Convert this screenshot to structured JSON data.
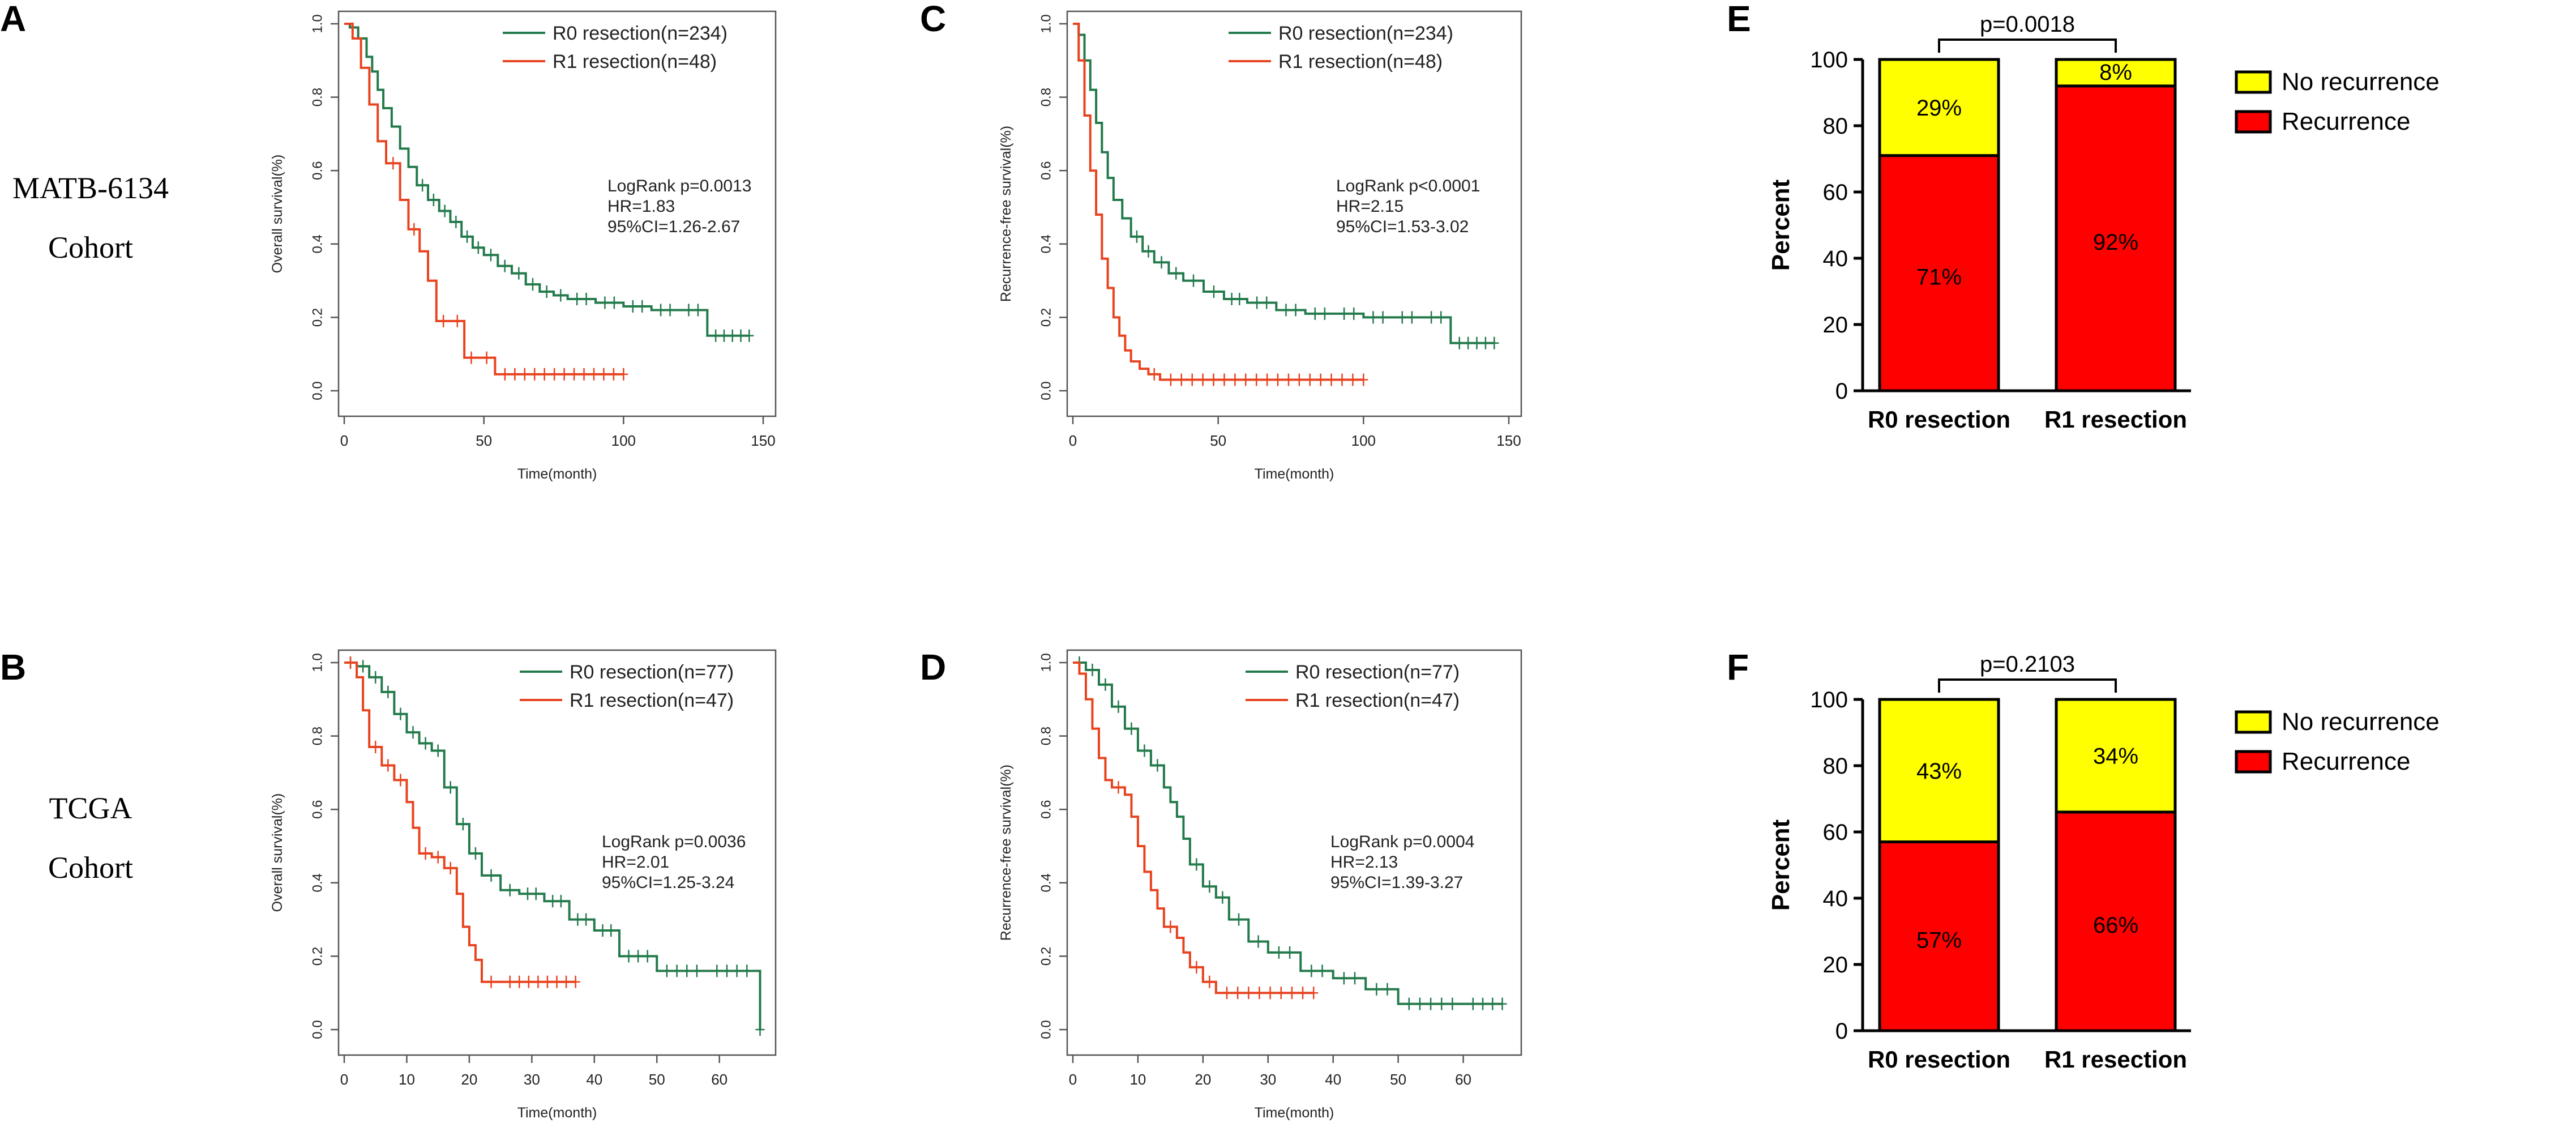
{
  "colors": {
    "r0": "#237a4b",
    "r1": "#e8431f",
    "recurrence": "#ff0000",
    "no_recurrence": "#ffff00"
  },
  "cohorts": [
    {
      "name_line1": "MATB-6134",
      "name_line2": "Cohort"
    },
    {
      "name_line1": "TCGA",
      "name_line2": "Cohort"
    }
  ],
  "chart_data": [
    {
      "panel": "A",
      "type": "line",
      "xlabel": "Time(month)",
      "ylabel": "Overall survival(%)",
      "xlim": [
        0,
        150
      ],
      "ylim": [
        0,
        1.0
      ],
      "xticks": [
        "0",
        "50",
        "100",
        "150"
      ],
      "yticks": [
        "0.0",
        "0.2",
        "0.4",
        "0.6",
        "0.8",
        "1.0"
      ],
      "legend": [
        "R0 resection(n=234)",
        "R1 resection(n=48)"
      ],
      "stats": [
        "LogRank p=0.0013",
        "HR=1.83",
        "95%CI=1.26-2.67"
      ],
      "series": [
        {
          "name": "R0 resection(n=234)",
          "x": [
            0,
            2,
            5,
            8,
            10,
            12,
            14,
            17,
            20,
            23,
            26,
            30,
            34,
            38,
            42,
            46,
            50,
            55,
            60,
            65,
            70,
            75,
            80,
            90,
            100,
            110,
            120,
            130,
            145
          ],
          "y": [
            1.0,
            0.99,
            0.96,
            0.91,
            0.87,
            0.82,
            0.77,
            0.72,
            0.66,
            0.61,
            0.56,
            0.52,
            0.49,
            0.46,
            0.42,
            0.39,
            0.37,
            0.34,
            0.32,
            0.29,
            0.27,
            0.26,
            0.25,
            0.24,
            0.23,
            0.22,
            0.22,
            0.15,
            0.15
          ]
        },
        {
          "name": "R1 resection(n=48)",
          "x": [
            0,
            3,
            6,
            9,
            12,
            15,
            20,
            23,
            27,
            30,
            33,
            38,
            43,
            48,
            54,
            100
          ],
          "y": [
            1.0,
            0.96,
            0.88,
            0.78,
            0.68,
            0.62,
            0.52,
            0.44,
            0.38,
            0.3,
            0.19,
            0.19,
            0.09,
            0.09,
            0.045,
            0.045
          ]
        }
      ]
    },
    {
      "panel": "C",
      "type": "line",
      "xlabel": "Time(month)",
      "ylabel": "Recurrence-free survival(%)",
      "xlim": [
        0,
        150
      ],
      "ylim": [
        0,
        1.0
      ],
      "xticks": [
        "0",
        "50",
        "100",
        "150"
      ],
      "yticks": [
        "0.0",
        "0.2",
        "0.4",
        "0.6",
        "0.8",
        "1.0"
      ],
      "legend": [
        "R0 resection(n=234)",
        "R1 resection(n=48)"
      ],
      "stats": [
        "LogRank p<0.0001",
        "HR=2.15",
        "95%CI=1.53-3.02"
      ],
      "series": [
        {
          "name": "R0 resection(n=234)",
          "x": [
            0,
            2,
            4,
            6,
            8,
            10,
            12,
            14,
            17,
            20,
            24,
            28,
            33,
            38,
            45,
            52,
            60,
            70,
            80,
            90,
            100,
            110,
            120,
            130,
            145
          ],
          "y": [
            1.0,
            0.97,
            0.9,
            0.82,
            0.73,
            0.65,
            0.58,
            0.52,
            0.47,
            0.42,
            0.38,
            0.35,
            0.32,
            0.3,
            0.27,
            0.25,
            0.24,
            0.22,
            0.21,
            0.21,
            0.2,
            0.2,
            0.2,
            0.13,
            0.13
          ]
        },
        {
          "name": "R1 resection(n=48)",
          "x": [
            0,
            2,
            4,
            6,
            8,
            10,
            12,
            14,
            16,
            18,
            20,
            23,
            26,
            30,
            100
          ],
          "y": [
            1.0,
            0.9,
            0.75,
            0.6,
            0.48,
            0.36,
            0.28,
            0.2,
            0.15,
            0.11,
            0.08,
            0.06,
            0.045,
            0.03,
            0.03
          ]
        }
      ]
    },
    {
      "panel": "E",
      "type": "bar",
      "categories": [
        "R0 resection",
        "R1 resection"
      ],
      "ylabel": "Percent",
      "ylim": [
        0,
        100
      ],
      "yticks": [
        "0",
        "20",
        "40",
        "60",
        "80",
        "100"
      ],
      "pvalue": "p=0.0018",
      "series": [
        {
          "name": "Recurrence",
          "values": [
            71,
            92
          ],
          "labels": [
            "71%",
            "92%"
          ]
        },
        {
          "name": "No recurrence",
          "values": [
            29,
            8
          ],
          "labels": [
            "29%",
            "8%"
          ]
        }
      ],
      "legend": [
        "No recurrence",
        "Recurrence"
      ]
    },
    {
      "panel": "B",
      "type": "line",
      "xlabel": "Time(month)",
      "ylabel": "Overall survival(%)",
      "xlim": [
        0,
        67
      ],
      "ylim": [
        0,
        1.0
      ],
      "xticks": [
        "0",
        "10",
        "20",
        "30",
        "40",
        "50",
        "60"
      ],
      "yticks": [
        "0.0",
        "0.2",
        "0.4",
        "0.6",
        "0.8",
        "1.0"
      ],
      "legend": [
        "R0 resection(n=77)",
        "R1 resection(n=47)"
      ],
      "stats": [
        "LogRank p=0.0036",
        "HR=2.01",
        "95%CI=1.25-3.24"
      ],
      "series": [
        {
          "name": "R0 resection(n=77)",
          "x": [
            0,
            2,
            4,
            6,
            8,
            10,
            12,
            14,
            16,
            18,
            20,
            22,
            25,
            28,
            32,
            36,
            40,
            44,
            50,
            58,
            66,
            66.5
          ],
          "y": [
            1.0,
            0.99,
            0.96,
            0.92,
            0.86,
            0.81,
            0.78,
            0.76,
            0.66,
            0.56,
            0.48,
            0.42,
            0.38,
            0.37,
            0.35,
            0.3,
            0.27,
            0.2,
            0.16,
            0.16,
            0.16,
            0.0
          ]
        },
        {
          "name": "R1 resection(n=47)",
          "x": [
            0,
            2,
            3,
            4,
            6,
            8,
            10,
            11,
            12,
            14,
            16,
            18,
            19,
            20,
            21,
            22,
            25,
            37
          ],
          "y": [
            1.0,
            0.96,
            0.87,
            0.77,
            0.72,
            0.68,
            0.62,
            0.55,
            0.48,
            0.47,
            0.44,
            0.37,
            0.28,
            0.23,
            0.19,
            0.13,
            0.13,
            0.13
          ]
        }
      ]
    },
    {
      "panel": "D",
      "type": "line",
      "xlabel": "Time(month)",
      "ylabel": "Recurrence-free survival(%)",
      "xlim": [
        0,
        67
      ],
      "ylim": [
        0,
        1.0
      ],
      "xticks": [
        "0",
        "10",
        "20",
        "30",
        "40",
        "50",
        "60"
      ],
      "yticks": [
        "0.0",
        "0.2",
        "0.4",
        "0.6",
        "0.8",
        "1.0"
      ],
      "legend": [
        "R0 resection(n=77)",
        "R1 resection(n=47)"
      ],
      "stats": [
        "LogRank p=0.0004",
        "HR=2.13",
        "95%CI=1.39-3.27"
      ],
      "series": [
        {
          "name": "R0 resection(n=77)",
          "x": [
            0,
            2,
            4,
            6,
            8,
            10,
            12,
            14,
            15,
            16,
            17,
            18,
            20,
            22,
            24,
            27,
            30,
            35,
            40,
            45,
            50,
            60,
            66
          ],
          "y": [
            1.0,
            0.98,
            0.94,
            0.88,
            0.82,
            0.76,
            0.72,
            0.66,
            0.62,
            0.58,
            0.52,
            0.45,
            0.39,
            0.36,
            0.3,
            0.24,
            0.21,
            0.16,
            0.14,
            0.11,
            0.07,
            0.07,
            0.07
          ]
        },
        {
          "name": "R1 resection(n=47)",
          "x": [
            0,
            1,
            2,
            3,
            4,
            5,
            6,
            8,
            9,
            10,
            11,
            12,
            13,
            14,
            16,
            17,
            18,
            20,
            22,
            37
          ],
          "y": [
            1.0,
            0.97,
            0.9,
            0.82,
            0.74,
            0.68,
            0.66,
            0.64,
            0.58,
            0.5,
            0.43,
            0.38,
            0.33,
            0.28,
            0.25,
            0.21,
            0.17,
            0.13,
            0.1,
            0.1
          ]
        }
      ]
    },
    {
      "panel": "F",
      "type": "bar",
      "categories": [
        "R0 resection",
        "R1 resection"
      ],
      "ylabel": "Percent",
      "ylim": [
        0,
        100
      ],
      "yticks": [
        "0",
        "20",
        "40",
        "60",
        "80",
        "100"
      ],
      "pvalue": "p=0.2103",
      "series": [
        {
          "name": "Recurrence",
          "values": [
            57,
            66
          ],
          "labels": [
            "57%",
            "66%"
          ]
        },
        {
          "name": "No recurrence",
          "values": [
            43,
            34
          ],
          "labels": [
            "43%",
            "34%"
          ]
        }
      ],
      "legend": [
        "No recurrence",
        "Recurrence"
      ]
    }
  ]
}
